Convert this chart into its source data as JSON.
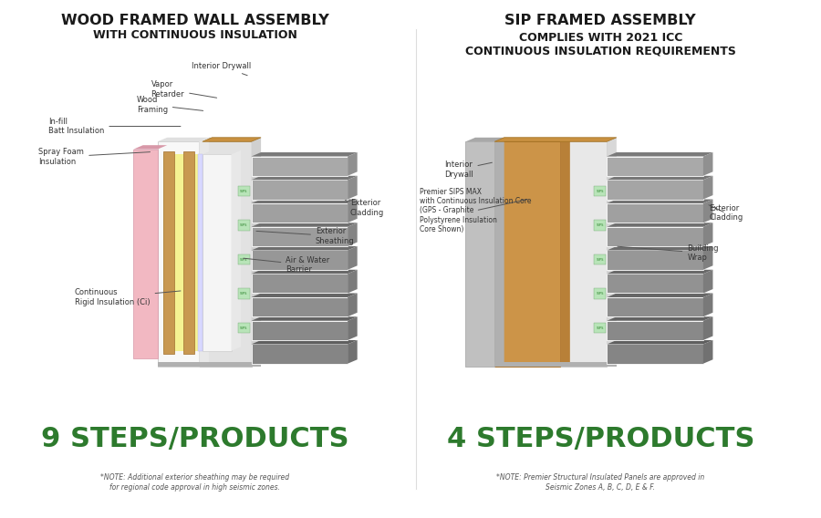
{
  "background_color": "#ffffff",
  "left_title1": "WOOD FRAMED WALL ASSEMBLY",
  "left_title2": "WITH CONTINUOUS INSULATION",
  "right_title1": "SIP FRAMED ASSEMBLY",
  "right_title2": "COMPLIES WITH 2021 ICC\nCONTINUOUS INSULATION REQUIREMENTS",
  "left_steps_text": "9 STEPS/PRODUCTS",
  "right_steps_text": "4 STEPS/PRODUCTS",
  "left_note": "*NOTE: Additional exterior sheathing may be required\nfor regional code approval in high seismic zones.",
  "right_note": "*NOTE: Premier Structural Insulated Panels are approved in\nSeismic Zones A, B, C, D, E & F.",
  "steps_color": "#2d7a2d",
  "title_color": "#1a1a1a",
  "note_color": "#555555",
  "divider_color": "#dddddd"
}
